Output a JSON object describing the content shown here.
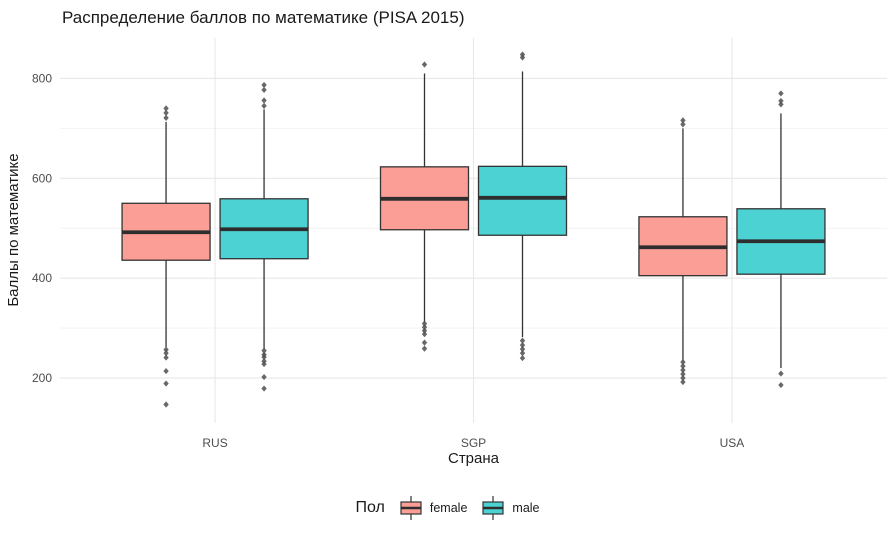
{
  "colors": {
    "female_fill": "#FA9E96",
    "male_fill": "#4DD2D4",
    "box_border": "#333333",
    "median_line": "#2E2E2E",
    "outlier": "#4D4D4D",
    "grid_major": "#E8E8E8",
    "grid_minor": "#F3F3F3",
    "axis_text": "#4D4D4D",
    "title_text": "#1A1A1A"
  },
  "chart_data": {
    "type": "boxplot",
    "title": "Распределение баллов по математике (PISA 2015)",
    "xlabel": "Страна",
    "ylabel": "Баллы по математике",
    "categories": [
      "RUS",
      "SGP",
      "USA"
    ],
    "y_ticks": [
      200,
      400,
      600,
      800
    ],
    "y_minor_ticks": [
      300,
      500,
      700
    ],
    "ylim": [
      110,
      881
    ],
    "grid": "on",
    "legend": {
      "title": "Пол",
      "position": "bottom",
      "entries": [
        {
          "label": "female",
          "color": "#FA9E96"
        },
        {
          "label": "male",
          "color": "#4DD2D4"
        }
      ]
    },
    "series": [
      {
        "name": "female",
        "fill": "#FA9E96",
        "boxes": [
          {
            "category": "RUS",
            "q1": 436,
            "median": 492,
            "q3": 550,
            "whisker_low": 262,
            "whisker_high": 713,
            "outliers_high": [
              740,
              731,
              721
            ],
            "outliers_low": [
              257,
              250,
              241,
              214,
              189,
              147
            ]
          },
          {
            "category": "SGP",
            "q1": 497,
            "median": 559,
            "q3": 623,
            "whisker_low": 312,
            "whisker_high": 810,
            "outliers_high": [
              828
            ],
            "outliers_low": [
              309,
              302,
              295,
              288,
              271,
              259
            ]
          },
          {
            "category": "USA",
            "q1": 405,
            "median": 462,
            "q3": 523,
            "whisker_low": 235,
            "whisker_high": 700,
            "outliers_high": [
              716,
              708
            ],
            "outliers_low": [
              232,
              224,
              216,
              208,
              200,
              192
            ]
          }
        ]
      },
      {
        "name": "male",
        "fill": "#4DD2D4",
        "boxes": [
          {
            "category": "RUS",
            "q1": 439,
            "median": 498,
            "q3": 559,
            "whisker_low": 258,
            "whisker_high": 738,
            "outliers_high": [
              787,
              777,
              756,
              745
            ],
            "outliers_low": [
              255,
              247,
              242,
              234,
              228,
              202,
              179
            ]
          },
          {
            "category": "SGP",
            "q1": 486,
            "median": 561,
            "q3": 624,
            "whisker_low": 282,
            "whisker_high": 814,
            "outliers_high": [
              848,
              842
            ],
            "outliers_low": [
              275,
              266,
              258,
              250,
              240
            ]
          },
          {
            "category": "USA",
            "q1": 408,
            "median": 474,
            "q3": 539,
            "whisker_low": 220,
            "whisker_high": 730,
            "outliers_high": [
              770,
              755,
              748
            ],
            "outliers_low": [
              209,
              186
            ]
          }
        ]
      }
    ]
  }
}
